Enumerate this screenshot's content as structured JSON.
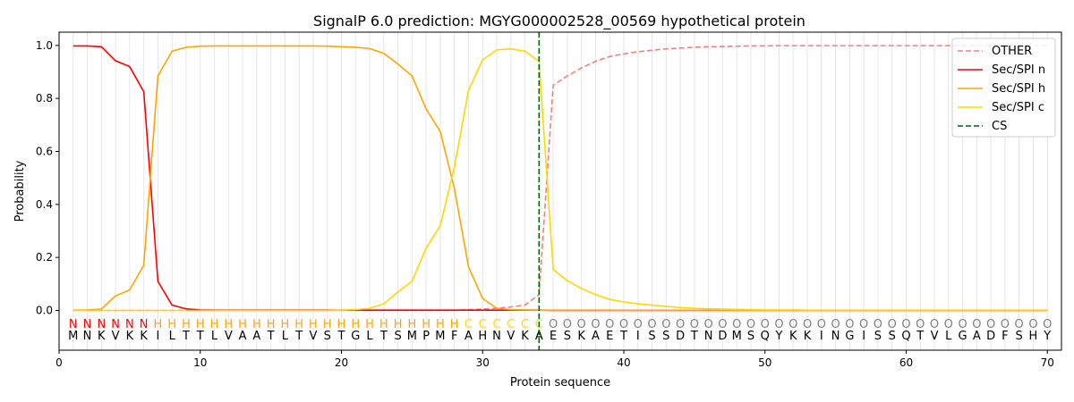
{
  "chart_data": {
    "type": "line",
    "title": "SignalP 6.0 prediction: MGYG000002528_00569 hypothetical protein",
    "xlabel": "Protein sequence",
    "ylabel": "Probability",
    "xlim": [
      0,
      71
    ],
    "ylim": [
      -0.15,
      1.05
    ],
    "xticks": [
      0,
      10,
      20,
      30,
      40,
      50,
      60,
      70
    ],
    "yticks": [
      0.0,
      0.2,
      0.4,
      0.6,
      0.8,
      1.0
    ],
    "ytick_labels": [
      "0.0",
      "0.2",
      "0.4",
      "0.6",
      "0.8",
      "1.0"
    ],
    "grid": "vertical lines at each residue",
    "legend_position": "top-right",
    "sequence": [
      "M",
      "N",
      "K",
      "V",
      "K",
      "K",
      "I",
      "L",
      "T",
      "T",
      "L",
      "V",
      "A",
      "A",
      "T",
      "L",
      "T",
      "V",
      "S",
      "T",
      "G",
      "L",
      "T",
      "S",
      "M",
      "P",
      "M",
      "F",
      "A",
      "H",
      "N",
      "V",
      "K",
      "A",
      "E",
      "S",
      "K",
      "A",
      "E",
      "T",
      "I",
      "S",
      "S",
      "D",
      "T",
      "N",
      "D",
      "M",
      "S",
      "Q",
      "Y",
      "K",
      "K",
      "I",
      "N",
      "G",
      "I",
      "S",
      "S",
      "Q",
      "T",
      "V",
      "L",
      "G",
      "A",
      "D",
      "F",
      "S",
      "H",
      "Y"
    ],
    "predicted_labels": [
      "N",
      "N",
      "N",
      "N",
      "N",
      "N",
      "H",
      "H",
      "H",
      "H",
      "H",
      "H",
      "H",
      "H",
      "H",
      "H",
      "H",
      "H",
      "H",
      "H",
      "H",
      "H",
      "H",
      "H",
      "H",
      "H",
      "H",
      "H",
      "C",
      "C",
      "C",
      "C",
      "C",
      "C",
      "O",
      "O",
      "O",
      "O",
      "O",
      "O",
      "O",
      "O",
      "O",
      "O",
      "O",
      "O",
      "O",
      "O",
      "O",
      "O",
      "O",
      "O",
      "O",
      "O",
      "O",
      "O",
      "O",
      "O",
      "O",
      "O",
      "O",
      "O",
      "O",
      "O",
      "O",
      "O",
      "O",
      "O",
      "O",
      "O"
    ],
    "label_colors": {
      "N": "#ff0000",
      "H": "#ffa500",
      "C": "#ffd700",
      "O": "#808080"
    },
    "cleavage_site": 34,
    "series": [
      {
        "name": "OTHER",
        "style": "dashed",
        "color": "#f08080",
        "values": [
          0.0,
          0.0,
          0.0,
          0.0,
          0.0,
          0.0,
          0.0,
          0.0,
          0.0,
          0.0,
          0.0,
          0.0,
          0.0,
          0.0,
          0.0,
          0.0,
          0.0,
          0.0,
          0.0,
          0.0,
          0.0,
          0.0,
          0.0,
          0.0,
          0.0,
          0.0,
          0.0,
          0.0,
          0.003,
          0.005,
          0.008,
          0.013,
          0.02,
          0.06,
          0.85,
          0.885,
          0.915,
          0.94,
          0.958,
          0.968,
          0.976,
          0.982,
          0.987,
          0.99,
          0.993,
          0.995,
          0.996,
          0.997,
          0.998,
          0.998,
          0.999,
          0.999,
          0.999,
          0.999,
          0.999,
          0.999,
          0.999,
          0.999,
          0.999,
          0.999,
          0.999,
          0.999,
          0.999,
          0.999,
          0.999,
          0.999,
          0.999,
          0.999,
          0.999,
          0.999
        ]
      },
      {
        "name": "Sec/SPI n",
        "style": "solid",
        "color": "#ff0000",
        "values": [
          0.998,
          0.998,
          0.995,
          0.942,
          0.92,
          0.825,
          0.11,
          0.02,
          0.006,
          0.002,
          0.001,
          0.001,
          0.001,
          0.001,
          0.001,
          0.001,
          0.001,
          0.001,
          0.001,
          0.001,
          0.001,
          0.001,
          0.001,
          0.001,
          0.001,
          0.001,
          0.001,
          0.001,
          0.001,
          0.001,
          0.001,
          0.001,
          0.001,
          0.001,
          0.0,
          0.0,
          0.0,
          0.0,
          0.0,
          0.0,
          0.0,
          0.0,
          0.0,
          0.0,
          0.0,
          0.0,
          0.0,
          0.0,
          0.0,
          0.0,
          0.0,
          0.0,
          0.0,
          0.0,
          0.0,
          0.0,
          0.0,
          0.0,
          0.0,
          0.0,
          0.0,
          0.0,
          0.0,
          0.0,
          0.0,
          0.0,
          0.0,
          0.0,
          0.0,
          0.0
        ]
      },
      {
        "name": "Sec/SPI h",
        "style": "solid",
        "color": "#ffa500",
        "values": [
          0.001,
          0.002,
          0.005,
          0.055,
          0.077,
          0.17,
          0.885,
          0.978,
          0.993,
          0.997,
          0.998,
          0.998,
          0.998,
          0.998,
          0.998,
          0.998,
          0.998,
          0.998,
          0.997,
          0.995,
          0.993,
          0.988,
          0.97,
          0.93,
          0.885,
          0.76,
          0.675,
          0.46,
          0.165,
          0.045,
          0.008,
          0.003,
          0.002,
          0.001,
          0.001,
          0.001,
          0.001,
          0.001,
          0.001,
          0.0,
          0.0,
          0.0,
          0.0,
          0.0,
          0.0,
          0.0,
          0.0,
          0.0,
          0.0,
          0.0,
          0.0,
          0.0,
          0.0,
          0.0,
          0.0,
          0.0,
          0.0,
          0.0,
          0.0,
          0.0,
          0.0,
          0.0,
          0.0,
          0.0,
          0.0,
          0.0,
          0.0,
          0.0,
          0.0,
          0.0
        ]
      },
      {
        "name": "Sec/SPI c",
        "style": "solid",
        "color": "#ffd700",
        "values": [
          0.0,
          0.0,
          0.0,
          0.0,
          0.0,
          0.0,
          0.0,
          0.0,
          0.0,
          0.0,
          0.0,
          0.0,
          0.0,
          0.0,
          0.0,
          0.0,
          0.0,
          0.0,
          0.0,
          0.001,
          0.003,
          0.008,
          0.025,
          0.07,
          0.11,
          0.235,
          0.32,
          0.54,
          0.83,
          0.945,
          0.983,
          0.987,
          0.978,
          0.94,
          0.155,
          0.112,
          0.083,
          0.06,
          0.042,
          0.032,
          0.025,
          0.02,
          0.015,
          0.011,
          0.008,
          0.006,
          0.005,
          0.004,
          0.003,
          0.002,
          0.002,
          0.002,
          0.001,
          0.001,
          0.001,
          0.001,
          0.001,
          0.001,
          0.001,
          0.001,
          0.001,
          0.001,
          0.001,
          0.001,
          0.001,
          0.001,
          0.001,
          0.001,
          0.001,
          0.001
        ]
      },
      {
        "name": "CS",
        "style": "dashed",
        "color": "#006400"
      }
    ]
  }
}
